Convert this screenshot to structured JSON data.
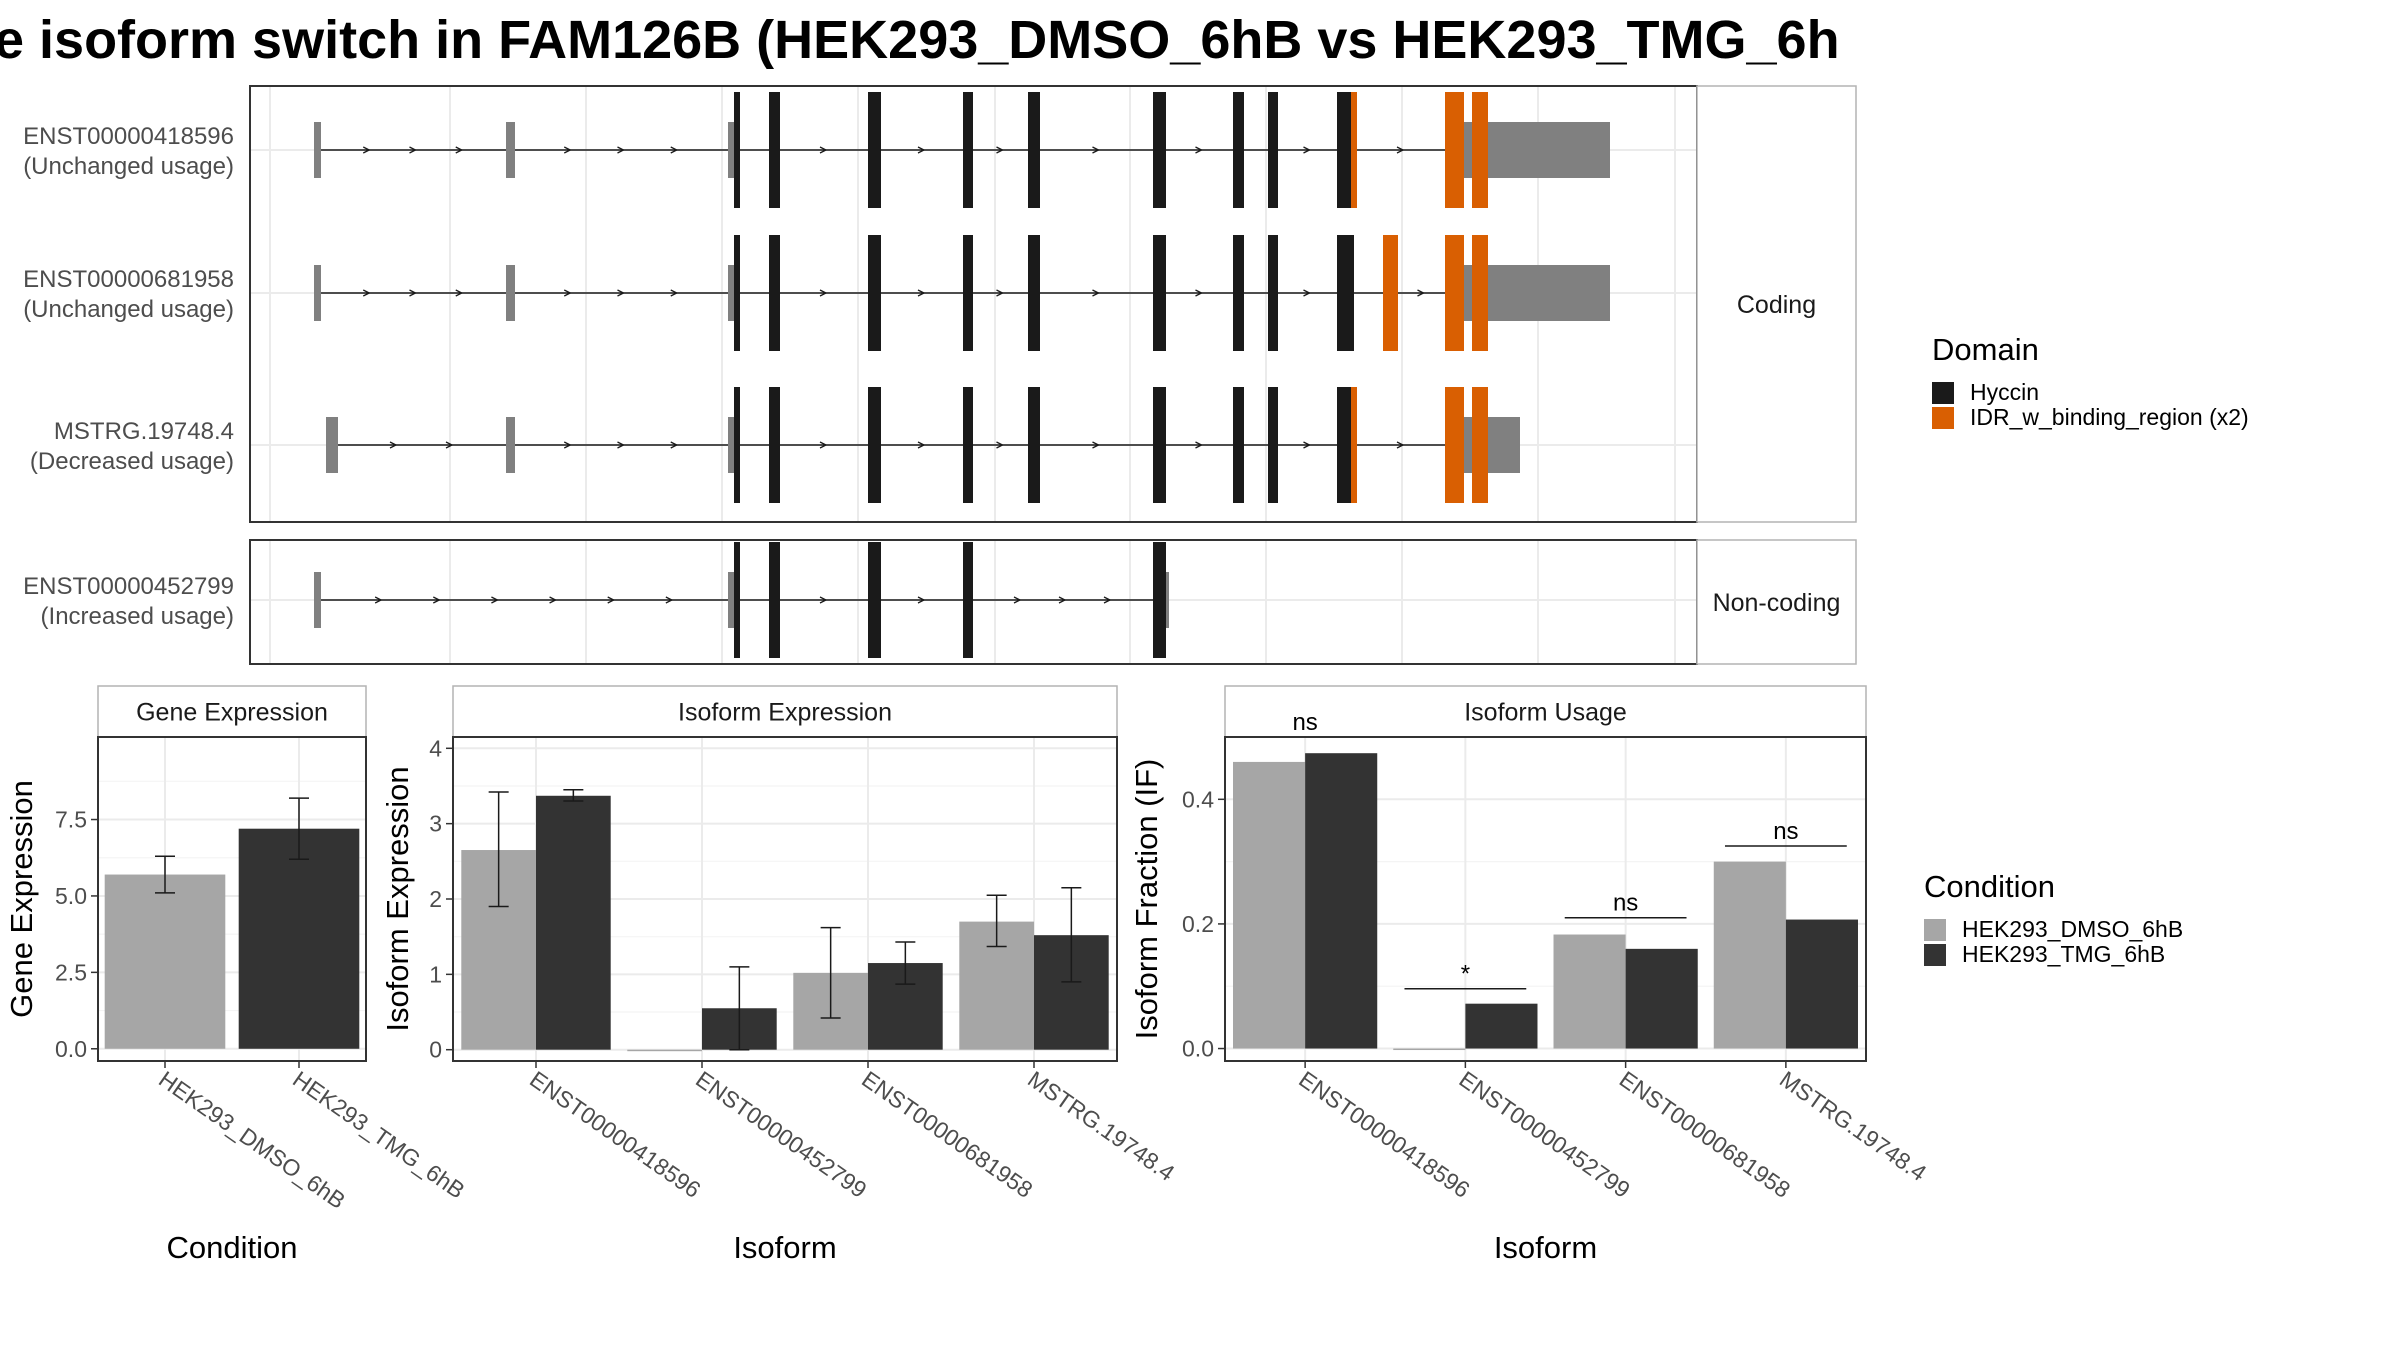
{
  "title": "e isoform switch in FAM126B (HEK293_DMSO_6hB vs HEK293_TMG_6h",
  "colors": {
    "exon_noncoding": "#808080",
    "hyccin": "#1a1a1a",
    "idr": "#d95f02",
    "dmso": "#a6a6a6",
    "tmg": "#333333",
    "grid": "#ebebeb",
    "panel_border": "#333333",
    "strip_border": "#b3b3b3"
  },
  "structure": {
    "x_range": [
      0,
      1000
    ],
    "facets": [
      {
        "label": "Coding",
        "transcripts": [
          {
            "id": "ENST00000418596",
            "usage": "(Unchanged usage)",
            "exons": [
              [
                6,
                13,
                "nc"
              ],
              [
                198,
                207,
                "nc"
              ],
              [
                420,
                426,
                "nc"
              ],
              [
                426,
                432,
                "hy"
              ],
              [
                461,
                472,
                "hy"
              ],
              [
                560,
                573,
                "hy"
              ],
              [
                655,
                665,
                "hy"
              ],
              [
                720,
                732,
                "hy"
              ],
              [
                845,
                858,
                "hy"
              ],
              [
                925,
                936,
                "hy"
              ],
              [
                960,
                970,
                "hy"
              ],
              [
                1029,
                1043,
                "hy"
              ],
              [
                1043,
                1049,
                "idr"
              ],
              [
                1137,
                1156,
                "idr"
              ],
              [
                1156,
                1164,
                "nc"
              ],
              [
                1164,
                1180,
                "idr"
              ],
              [
                1180,
                1302,
                "nc"
              ]
            ]
          },
          {
            "id": "ENST00000681958",
            "usage": "(Unchanged usage)",
            "exons": [
              [
                6,
                13,
                "nc"
              ],
              [
                198,
                207,
                "nc"
              ],
              [
                420,
                426,
                "nc"
              ],
              [
                426,
                432,
                "hy"
              ],
              [
                461,
                472,
                "hy"
              ],
              [
                560,
                573,
                "hy"
              ],
              [
                655,
                665,
                "hy"
              ],
              [
                720,
                732,
                "hy"
              ],
              [
                845,
                858,
                "hy"
              ],
              [
                925,
                936,
                "hy"
              ],
              [
                960,
                970,
                "hy"
              ],
              [
                1029,
                1046,
                "hy"
              ],
              [
                1075,
                1090,
                "idr"
              ],
              [
                1137,
                1156,
                "idr"
              ],
              [
                1156,
                1164,
                "nc"
              ],
              [
                1164,
                1180,
                "idr"
              ],
              [
                1180,
                1302,
                "nc"
              ]
            ]
          },
          {
            "id": "MSTRG.19748.4",
            "usage": "(Decreased usage)",
            "exons": [
              [
                18,
                30,
                "nc"
              ],
              [
                198,
                207,
                "nc"
              ],
              [
                420,
                426,
                "nc"
              ],
              [
                426,
                432,
                "hy"
              ],
              [
                461,
                472,
                "hy"
              ],
              [
                560,
                573,
                "hy"
              ],
              [
                655,
                665,
                "hy"
              ],
              [
                720,
                732,
                "hy"
              ],
              [
                845,
                858,
                "hy"
              ],
              [
                925,
                936,
                "hy"
              ],
              [
                960,
                970,
                "hy"
              ],
              [
                1029,
                1043,
                "hy"
              ],
              [
                1043,
                1049,
                "idr"
              ],
              [
                1137,
                1156,
                "idr"
              ],
              [
                1156,
                1164,
                "nc"
              ],
              [
                1164,
                1180,
                "idr"
              ],
              [
                1180,
                1212,
                "nc"
              ]
            ]
          }
        ]
      },
      {
        "label": "Non-coding",
        "transcripts": [
          {
            "id": "ENST00000452799",
            "usage": "(Increased usage)",
            "exons": [
              [
                6,
                13,
                "nc"
              ],
              [
                420,
                426,
                "nc"
              ],
              [
                426,
                432,
                "hy"
              ],
              [
                461,
                472,
                "hy"
              ],
              [
                560,
                573,
                "hy"
              ],
              [
                655,
                665,
                "hy"
              ],
              [
                845,
                858,
                "hy"
              ],
              [
                858,
                861,
                "nc"
              ]
            ]
          }
        ]
      }
    ]
  },
  "domain_legend": {
    "title": "Domain",
    "entries": [
      {
        "label": "Hyccin",
        "color": "#1a1a1a"
      },
      {
        "label": "IDR_w_binding_region (x2)",
        "color": "#d95f02"
      }
    ]
  },
  "condition_legend": {
    "title": "Condition",
    "entries": [
      {
        "label": "HEK293_DMSO_6hB",
        "color": "#a6a6a6"
      },
      {
        "label": "HEK293_TMG_6hB",
        "color": "#333333"
      }
    ]
  },
  "chart_data": [
    {
      "type": "bar",
      "title": "Gene Expression",
      "xlabel": "Condition",
      "ylabel": "Gene Expression",
      "ylim": [
        -0.4,
        10.2
      ],
      "yticks": [
        0.0,
        2.5,
        5.0,
        7.5
      ],
      "ytick_labels": [
        "0.0",
        "2.5",
        "5.0",
        "7.5"
      ],
      "categories": [
        "HEK293_DMSO_6hB",
        "HEK293_TMG_6hB"
      ],
      "values": [
        5.7,
        7.2
      ],
      "err_low": [
        5.1,
        6.2
      ],
      "err_high": [
        6.3,
        8.2
      ],
      "colors": [
        "#a6a6a6",
        "#333333"
      ],
      "grid": true
    },
    {
      "type": "bar",
      "title": "Isoform Expression",
      "xlabel": "Isoform",
      "ylabel": "Isoform Expression",
      "ylim": [
        -0.15,
        4.15
      ],
      "yticks": [
        0,
        1,
        2,
        3,
        4
      ],
      "ytick_labels": [
        "0",
        "1",
        "2",
        "3",
        "4"
      ],
      "categories": [
        "ENST00000418596",
        "ENST00000452799",
        "ENST00000681958",
        "MSTRG.19748.4"
      ],
      "series": [
        {
          "name": "HEK293_DMSO_6hB",
          "values": [
            2.65,
            0.0,
            1.02,
            1.7
          ],
          "err_low": [
            1.9,
            null,
            0.42,
            1.37
          ],
          "err_high": [
            3.42,
            null,
            1.62,
            2.05
          ]
        },
        {
          "name": "HEK293_TMG_6hB",
          "values": [
            3.37,
            0.55,
            1.15,
            1.52
          ],
          "err_low": [
            3.3,
            0.0,
            0.87,
            0.9
          ],
          "err_high": [
            3.45,
            1.1,
            1.43,
            2.15
          ]
        }
      ],
      "grid": true
    },
    {
      "type": "bar",
      "title": "Isoform Usage",
      "xlabel": "Isoform",
      "ylabel": "Isoform Fraction (IF)",
      "ylim": [
        -0.02,
        0.5
      ],
      "yticks": [
        0.0,
        0.2,
        0.4
      ],
      "ytick_labels": [
        "0.0",
        "0.2",
        "0.4"
      ],
      "categories": [
        "ENST00000418596",
        "ENST00000452799",
        "ENST00000681958",
        "MSTRG.19748.4"
      ],
      "series": [
        {
          "name": "HEK293_DMSO_6hB",
          "values": [
            0.46,
            0.0,
            0.183,
            0.3
          ]
        },
        {
          "name": "HEK293_TMG_6hB",
          "values": [
            0.474,
            0.072,
            0.16,
            0.207
          ]
        }
      ],
      "significance": [
        {
          "label": "ns",
          "y": 0.5
        },
        {
          "label": "*",
          "y": 0.096
        },
        {
          "label": "ns",
          "y": 0.21
        },
        {
          "label": "ns",
          "y": 0.325
        }
      ],
      "grid": true
    }
  ]
}
